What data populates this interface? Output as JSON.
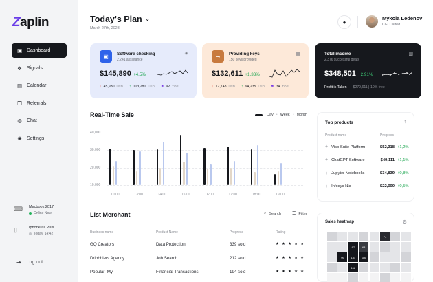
{
  "app": {
    "logo_z": "Z",
    "logo_rest": "aplin"
  },
  "sidebar": {
    "items": [
      {
        "label": "Dashboard",
        "icon": "dashboard-icon",
        "glyph": "▣",
        "active": true
      },
      {
        "label": "Signals",
        "icon": "signals-icon",
        "glyph": "❖"
      },
      {
        "label": "Calendar",
        "icon": "calendar-icon",
        "glyph": "▤"
      },
      {
        "label": "Referrals",
        "icon": "gift-icon",
        "glyph": "❒"
      },
      {
        "label": "Chat",
        "icon": "chat-icon",
        "glyph": "◍"
      },
      {
        "label": "Settings",
        "icon": "settings-icon",
        "glyph": "✺"
      }
    ],
    "devices": [
      {
        "name": "Macbook 2017",
        "status": "Online Now",
        "online": true,
        "icon": "laptop-icon"
      },
      {
        "name": "Iphone 6s Plus",
        "status": "Today, 14:42",
        "online": false,
        "icon": "phone-icon"
      }
    ],
    "logout": "Log out"
  },
  "header": {
    "title": "Today's Plan",
    "date": "March 27th, 2023",
    "user_name": "Mykola Ledenov",
    "user_role": "CEO Nifed"
  },
  "cards": [
    {
      "title": "Software checking",
      "subtitle": "2,241 assistance",
      "value": "$145,890",
      "change": "+4,5%",
      "icon": "software-icon",
      "icon_bg": "#2f63ea",
      "bg": "#e6ebfb",
      "menu": "✷",
      "stats": [
        {
          "arrow": "↓",
          "arrow_color": "#e0483c",
          "value": "45,930",
          "unit": "USD"
        },
        {
          "arrow": "↑",
          "arrow_color": "#1da650",
          "value": "103,280",
          "unit": "USD"
        },
        {
          "arrow": "⚑",
          "arrow_color": "#7b3fe4",
          "value": "92",
          "unit": "TOP"
        }
      ]
    },
    {
      "title": "Providing keys",
      "subtitle": "150 keys provided",
      "value": "$132,611",
      "change": "+1,33%",
      "icon": "key-icon",
      "icon_bg": "#c87a3e",
      "bg": "#fde9d9",
      "menu": "▦",
      "stats": [
        {
          "arrow": "↓",
          "arrow_color": "#e0483c",
          "value": "12,748",
          "unit": "USD"
        },
        {
          "arrow": "↑",
          "arrow_color": "#1da650",
          "value": "94,235",
          "unit": "USD"
        },
        {
          "arrow": "⚑",
          "arrow_color": "#7b3fe4",
          "value": "34",
          "unit": "TOP"
        }
      ]
    },
    {
      "title": "Total income",
      "subtitle": "2,376 successful deals",
      "value": "$348,501",
      "change": "+2,91%",
      "icon": "",
      "icon_bg": "",
      "bg": "#16181d",
      "menu": "▥",
      "profit_label": "Profit is Taken",
      "profit_detail": "$279,611 | 10% free"
    }
  ],
  "realtime": {
    "title": "Real-Time Sale",
    "legend": [
      "Day",
      "Week",
      "Month"
    ]
  },
  "chart_data": {
    "type": "bar",
    "x_ticks": [
      "10:00",
      "13:00",
      "14:00",
      "15:00",
      "16:00",
      "17:00",
      "18:00",
      "19:00"
    ],
    "y_ticks": [
      "40,000",
      "30,000",
      "20,000",
      "10,000"
    ],
    "ylim": [
      10000,
      40000
    ],
    "series": [
      {
        "color": "#16181d",
        "values": [
          31000,
          30000,
          30500,
          38500,
          31500,
          32000,
          30500,
          16500
        ]
      },
      {
        "color": "#e3d7c8",
        "values": [
          20500,
          18000,
          20000,
          23500,
          19500,
          20000,
          17500,
          18000
        ]
      },
      {
        "color": "#b9c8ee",
        "values": [
          24000,
          29500,
          35000,
          28500,
          22000,
          24000,
          33000,
          22500
        ]
      }
    ]
  },
  "top_products": {
    "title": "Top products",
    "col_product": "Product name",
    "col_progress": "Progress",
    "rows": [
      {
        "name": "Viso Suite Platform",
        "price": "$52,318",
        "change": "+1,2%"
      },
      {
        "name": "ChatGPT Software",
        "price": "$49,111",
        "change": "+1,1%"
      },
      {
        "name": "Jupyter Notebooks",
        "price": "$34,839",
        "change": "+0,8%"
      },
      {
        "name": "Infosys Nia",
        "price": "$22,000",
        "change": "+0,5%"
      }
    ]
  },
  "heatmap": {
    "title": "Sales heatmap",
    "cells": [
      {
        "r": 0,
        "c": 5,
        "label": "74",
        "shade": "#2a2b30"
      },
      {
        "r": 1,
        "c": 2,
        "label": "97",
        "shade": "#16181d"
      },
      {
        "r": 1,
        "c": 3,
        "label": "63",
        "shade": "#3a3c42"
      },
      {
        "r": 2,
        "c": 1,
        "label": "96",
        "shade": "#16181d"
      },
      {
        "r": 2,
        "c": 2,
        "label": "131",
        "shade": "#16181d"
      },
      {
        "r": 2,
        "c": 3,
        "label": "186",
        "shade": "#16181d"
      },
      {
        "r": 3,
        "c": 2,
        "label": "158",
        "shade": "#16181d"
      }
    ]
  },
  "merchants": {
    "title": "List Merchant",
    "search": "Search",
    "filter": "Filter",
    "headers": [
      "Business name",
      "Product Name",
      "Progress",
      "Rating"
    ],
    "rows": [
      {
        "business": "GQ Creators",
        "product": "Data Protection",
        "progress": "339 sold",
        "rating": "★ ★ ★ ★ ★"
      },
      {
        "business": "Dribbblers Agency",
        "product": "Job Search",
        "progress": "212 sold",
        "rating": "★ ★ ★ ★ ✬"
      },
      {
        "business": "Popular_My",
        "product": "Financial Transactions",
        "progress": "194 sold",
        "rating": "★ ★ ★ ★ ✬"
      }
    ]
  }
}
